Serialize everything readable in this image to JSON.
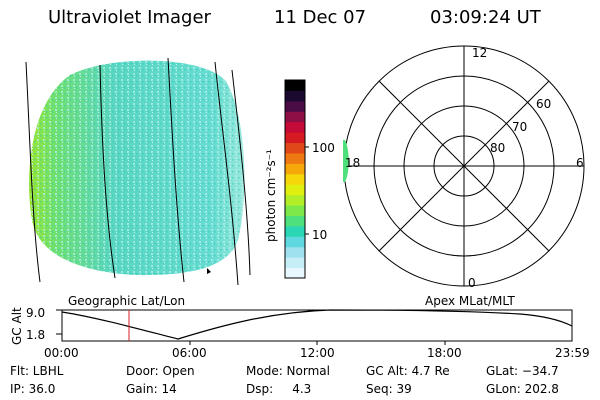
{
  "header": {
    "instrument": "Ultraviolet Imager",
    "date": "11 Dec 07",
    "time": "03:09:24 UT"
  },
  "colorbar": {
    "unit_label": "photon cm⁻²s⁻¹",
    "tick_100": "100",
    "tick_10": "10",
    "colors": [
      "#e8f8ff",
      "#c6eef6",
      "#9fe1ee",
      "#5fd8e0",
      "#2bd6b4",
      "#4ee07c",
      "#7de84a",
      "#b2ee28",
      "#e0ee10",
      "#f5d80a",
      "#f6a80a",
      "#f07812",
      "#e04818",
      "#d61a22",
      "#c40a36",
      "#8c1046",
      "#4a0c44",
      "#1a0a30",
      "#000000"
    ]
  },
  "polar": {
    "label_12": "12",
    "label_18": "18",
    "label_6": "6",
    "label_0": "0",
    "label_60": "60",
    "label_70": "70",
    "label_80": "80"
  },
  "orbit": {
    "ylabel": "GC Alt",
    "ytick_top": "9.0",
    "ytick_bottom": "1.8",
    "left_caption": "Geographic Lat/Lon",
    "right_caption": "Apex MLat/MLT",
    "xticks": [
      "00:00",
      "06:00",
      "12:00",
      "18:00",
      "23:59"
    ],
    "current_marker_color": "#d62020"
  },
  "footer": {
    "flt": "Flt: LBHL",
    "ip": "IP: 36.0",
    "door": "Door: Open",
    "gain": "Gain: 14",
    "mode": "Mode: Normal",
    "dsp": "Dsp:     4.3",
    "gcalt": "GC Alt: 4.7 Re",
    "seq": "Seq: 39",
    "glat": "GLat: −34.7",
    "glon": "GLon: 202.8"
  }
}
